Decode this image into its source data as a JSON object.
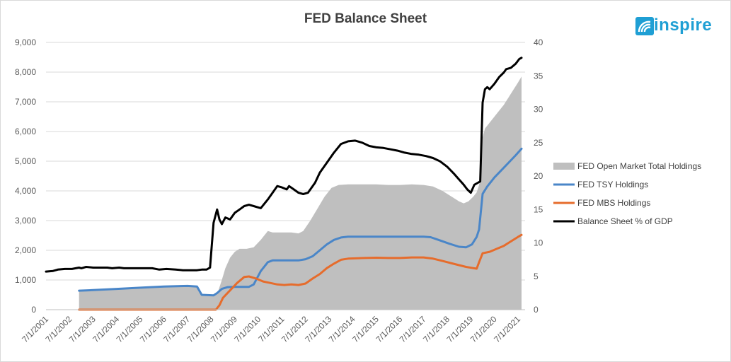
{
  "chart_data": {
    "type": "line",
    "title": "FED Balance Sheet",
    "logo_text": "inspire",
    "left_axis": {
      "ylim": [
        0,
        9000
      ],
      "ticks": [
        "0",
        "1,000",
        "2,000",
        "3,000",
        "4,000",
        "5,000",
        "6,000",
        "7,000",
        "8,000",
        "9,000"
      ]
    },
    "right_axis": {
      "ylim": [
        0,
        40
      ],
      "ticks": [
        "0",
        "5",
        "10",
        "15",
        "20",
        "25",
        "30",
        "35",
        "40"
      ]
    },
    "x_ticks": [
      "7/1/2001",
      "7/1/2002",
      "7/1/2003",
      "7/1/2004",
      "7/1/2005",
      "7/1/2006",
      "7/1/2007",
      "7/1/2008",
      "7/1/2009",
      "7/1/2010",
      "7/1/2011",
      "7/1/2012",
      "7/1/2013",
      "7/1/2014",
      "7/1/2015",
      "7/1/2016",
      "7/1/2017",
      "7/1/2018",
      "7/1/2019",
      "7/1/2020",
      "7/1/2021"
    ],
    "xlim": [
      2001.5,
      2021.8
    ],
    "grid": true,
    "legend_position": "right",
    "series": [
      {
        "name": "FED Open Market Total Holdings",
        "kind": "area",
        "axis": "left",
        "color": "#bfbfbf",
        "points": [
          [
            2002.9,
            0
          ],
          [
            2002.9,
            640
          ],
          [
            2003.5,
            660
          ],
          [
            2004.5,
            700
          ],
          [
            2005.5,
            740
          ],
          [
            2006.5,
            780
          ],
          [
            2007.5,
            800
          ],
          [
            2007.9,
            790
          ],
          [
            2008.1,
            500
          ],
          [
            2008.6,
            480
          ],
          [
            2008.75,
            520
          ],
          [
            2008.95,
            1000
          ],
          [
            2009.1,
            1400
          ],
          [
            2009.3,
            1750
          ],
          [
            2009.5,
            1950
          ],
          [
            2009.7,
            2050
          ],
          [
            2010.0,
            2050
          ],
          [
            2010.3,
            2100
          ],
          [
            2010.6,
            2350
          ],
          [
            2010.9,
            2650
          ],
          [
            2011.1,
            2600
          ],
          [
            2011.5,
            2600
          ],
          [
            2011.9,
            2600
          ],
          [
            2012.2,
            2570
          ],
          [
            2012.4,
            2650
          ],
          [
            2012.7,
            3000
          ],
          [
            2013.0,
            3400
          ],
          [
            2013.3,
            3800
          ],
          [
            2013.6,
            4100
          ],
          [
            2013.9,
            4200
          ],
          [
            2014.3,
            4220
          ],
          [
            2015.0,
            4220
          ],
          [
            2015.5,
            4220
          ],
          [
            2016.0,
            4200
          ],
          [
            2016.5,
            4200
          ],
          [
            2017.0,
            4220
          ],
          [
            2017.5,
            4200
          ],
          [
            2017.9,
            4150
          ],
          [
            2018.3,
            4000
          ],
          [
            2018.7,
            3800
          ],
          [
            2019.0,
            3650
          ],
          [
            2019.2,
            3580
          ],
          [
            2019.4,
            3650
          ],
          [
            2019.6,
            3800
          ],
          [
            2019.75,
            3950
          ],
          [
            2019.85,
            4200
          ],
          [
            2020.0,
            5800
          ],
          [
            2020.1,
            6100
          ],
          [
            2020.3,
            6300
          ],
          [
            2020.6,
            6600
          ],
          [
            2020.9,
            6900
          ],
          [
            2021.1,
            7150
          ],
          [
            2021.3,
            7400
          ],
          [
            2021.5,
            7650
          ],
          [
            2021.65,
            7850
          ],
          [
            2021.65,
            0
          ]
        ]
      },
      {
        "name": "FED TSY Holdings",
        "kind": "line",
        "axis": "left",
        "color": "#4a86c8",
        "points": [
          [
            2002.9,
            640
          ],
          [
            2003.5,
            660
          ],
          [
            2004.5,
            700
          ],
          [
            2005.5,
            740
          ],
          [
            2006.5,
            780
          ],
          [
            2007.5,
            800
          ],
          [
            2007.9,
            780
          ],
          [
            2008.1,
            500
          ],
          [
            2008.6,
            480
          ],
          [
            2008.75,
            560
          ],
          [
            2008.95,
            700
          ],
          [
            2009.2,
            760
          ],
          [
            2009.5,
            770
          ],
          [
            2009.8,
            770
          ],
          [
            2010.1,
            770
          ],
          [
            2010.3,
            850
          ],
          [
            2010.6,
            1300
          ],
          [
            2010.9,
            1600
          ],
          [
            2011.1,
            1660
          ],
          [
            2011.5,
            1660
          ],
          [
            2011.9,
            1660
          ],
          [
            2012.2,
            1660
          ],
          [
            2012.5,
            1700
          ],
          [
            2012.8,
            1800
          ],
          [
            2013.1,
            2000
          ],
          [
            2013.4,
            2200
          ],
          [
            2013.7,
            2350
          ],
          [
            2014.0,
            2430
          ],
          [
            2014.3,
            2460
          ],
          [
            2015.0,
            2460
          ],
          [
            2016.0,
            2460
          ],
          [
            2017.0,
            2460
          ],
          [
            2017.5,
            2460
          ],
          [
            2017.8,
            2440
          ],
          [
            2018.2,
            2330
          ],
          [
            2018.6,
            2220
          ],
          [
            2019.0,
            2120
          ],
          [
            2019.3,
            2100
          ],
          [
            2019.55,
            2200
          ],
          [
            2019.75,
            2450
          ],
          [
            2019.85,
            2700
          ],
          [
            2020.0,
            3900
          ],
          [
            2020.2,
            4150
          ],
          [
            2020.5,
            4450
          ],
          [
            2020.8,
            4700
          ],
          [
            2021.1,
            4950
          ],
          [
            2021.4,
            5200
          ],
          [
            2021.65,
            5420
          ]
        ]
      },
      {
        "name": "FED MBS Holdings",
        "kind": "line",
        "axis": "left",
        "color": "#e66c2c",
        "points": [
          [
            2002.9,
            0
          ],
          [
            2004.5,
            0
          ],
          [
            2006.5,
            0
          ],
          [
            2008.7,
            0
          ],
          [
            2008.85,
            150
          ],
          [
            2009.0,
            400
          ],
          [
            2009.3,
            650
          ],
          [
            2009.6,
            900
          ],
          [
            2009.9,
            1100
          ],
          [
            2010.1,
            1120
          ],
          [
            2010.4,
            1050
          ],
          [
            2010.7,
            950
          ],
          [
            2011.0,
            900
          ],
          [
            2011.3,
            850
          ],
          [
            2011.6,
            830
          ],
          [
            2011.9,
            850
          ],
          [
            2012.2,
            830
          ],
          [
            2012.5,
            880
          ],
          [
            2012.8,
            1050
          ],
          [
            2013.1,
            1200
          ],
          [
            2013.4,
            1400
          ],
          [
            2013.7,
            1550
          ],
          [
            2014.0,
            1680
          ],
          [
            2014.3,
            1720
          ],
          [
            2015.0,
            1740
          ],
          [
            2015.5,
            1750
          ],
          [
            2016.0,
            1740
          ],
          [
            2016.5,
            1740
          ],
          [
            2017.0,
            1760
          ],
          [
            2017.5,
            1760
          ],
          [
            2017.9,
            1720
          ],
          [
            2018.3,
            1640
          ],
          [
            2018.7,
            1560
          ],
          [
            2019.0,
            1500
          ],
          [
            2019.3,
            1440
          ],
          [
            2019.6,
            1400
          ],
          [
            2019.75,
            1380
          ],
          [
            2019.85,
            1600
          ],
          [
            2020.0,
            1900
          ],
          [
            2020.3,
            1950
          ],
          [
            2020.6,
            2050
          ],
          [
            2020.9,
            2150
          ],
          [
            2021.2,
            2300
          ],
          [
            2021.5,
            2450
          ],
          [
            2021.65,
            2520
          ]
        ]
      },
      {
        "name": "Balance Sheet % of GDP",
        "kind": "line",
        "axis": "right",
        "color": "#000000",
        "points": [
          [
            2001.5,
            5.7
          ],
          [
            2001.8,
            5.8
          ],
          [
            2002.0,
            6.0
          ],
          [
            2002.3,
            6.1
          ],
          [
            2002.6,
            6.1
          ],
          [
            2002.9,
            6.3
          ],
          [
            2003.0,
            6.2
          ],
          [
            2003.2,
            6.4
          ],
          [
            2003.5,
            6.3
          ],
          [
            2003.8,
            6.3
          ],
          [
            2004.1,
            6.3
          ],
          [
            2004.3,
            6.2
          ],
          [
            2004.6,
            6.3
          ],
          [
            2004.8,
            6.2
          ],
          [
            2005.1,
            6.2
          ],
          [
            2005.5,
            6.2
          ],
          [
            2006.0,
            6.2
          ],
          [
            2006.3,
            6.0
          ],
          [
            2006.6,
            6.1
          ],
          [
            2007.0,
            6.0
          ],
          [
            2007.3,
            5.9
          ],
          [
            2007.6,
            5.9
          ],
          [
            2007.9,
            5.9
          ],
          [
            2008.1,
            6.0
          ],
          [
            2008.3,
            6.0
          ],
          [
            2008.45,
            6.3
          ],
          [
            2008.6,
            13.0
          ],
          [
            2008.75,
            15.0
          ],
          [
            2008.85,
            13.5
          ],
          [
            2008.95,
            12.8
          ],
          [
            2009.1,
            13.8
          ],
          [
            2009.3,
            13.5
          ],
          [
            2009.5,
            14.5
          ],
          [
            2009.7,
            15.0
          ],
          [
            2009.9,
            15.5
          ],
          [
            2010.1,
            15.7
          ],
          [
            2010.3,
            15.5
          ],
          [
            2010.6,
            15.2
          ],
          [
            2010.9,
            16.5
          ],
          [
            2011.1,
            17.5
          ],
          [
            2011.3,
            18.5
          ],
          [
            2011.5,
            18.3
          ],
          [
            2011.7,
            18.0
          ],
          [
            2011.8,
            18.5
          ],
          [
            2012.0,
            18.0
          ],
          [
            2012.2,
            17.5
          ],
          [
            2012.4,
            17.3
          ],
          [
            2012.6,
            17.5
          ],
          [
            2012.9,
            19.0
          ],
          [
            2013.1,
            20.5
          ],
          [
            2013.4,
            22.0
          ],
          [
            2013.7,
            23.5
          ],
          [
            2014.0,
            24.8
          ],
          [
            2014.3,
            25.2
          ],
          [
            2014.6,
            25.3
          ],
          [
            2014.9,
            25.0
          ],
          [
            2015.2,
            24.5
          ],
          [
            2015.5,
            24.3
          ],
          [
            2015.8,
            24.2
          ],
          [
            2016.1,
            24.0
          ],
          [
            2016.4,
            23.8
          ],
          [
            2016.7,
            23.5
          ],
          [
            2017.0,
            23.3
          ],
          [
            2017.3,
            23.2
          ],
          [
            2017.6,
            23.0
          ],
          [
            2017.9,
            22.7
          ],
          [
            2018.2,
            22.2
          ],
          [
            2018.5,
            21.4
          ],
          [
            2018.8,
            20.3
          ],
          [
            2019.0,
            19.5
          ],
          [
            2019.2,
            18.7
          ],
          [
            2019.35,
            18.0
          ],
          [
            2019.5,
            17.5
          ],
          [
            2019.65,
            18.7
          ],
          [
            2019.8,
            19.0
          ],
          [
            2019.9,
            19.2
          ],
          [
            2020.0,
            31.0
          ],
          [
            2020.1,
            33.0
          ],
          [
            2020.2,
            33.3
          ],
          [
            2020.3,
            33.0
          ],
          [
            2020.5,
            33.8
          ],
          [
            2020.7,
            34.8
          ],
          [
            2020.9,
            35.5
          ],
          [
            2021.0,
            36.0
          ],
          [
            2021.2,
            36.2
          ],
          [
            2021.4,
            36.8
          ],
          [
            2021.55,
            37.5
          ],
          [
            2021.65,
            37.7
          ]
        ]
      }
    ]
  }
}
